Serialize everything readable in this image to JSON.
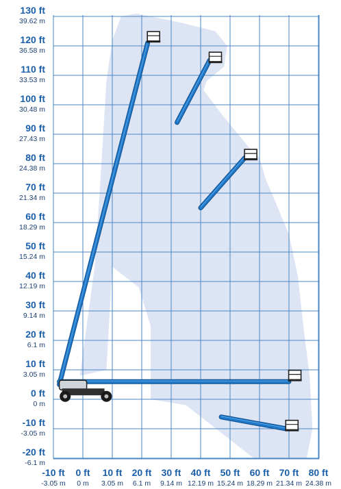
{
  "colors": {
    "grid": "#4a86c6",
    "envelope": "#dde4f3",
    "boom": "#1f78c8",
    "boom_dark": "#0f4e8c",
    "label_ft": "#1a5fa8",
    "label_m": "#1c3f72"
  },
  "y_axis": [
    {
      "ft": "130 ft",
      "m": "39.62 m",
      "v": 130
    },
    {
      "ft": "120 ft",
      "m": "36.58 m",
      "v": 120
    },
    {
      "ft": "110 ft",
      "m": "33.53 m",
      "v": 110
    },
    {
      "ft": "100 ft",
      "m": "30.48 m",
      "v": 100
    },
    {
      "ft": "90 ft",
      "m": "27.43 m",
      "v": 90
    },
    {
      "ft": "80 ft",
      "m": "24.38 m",
      "v": 80
    },
    {
      "ft": "70 ft",
      "m": "21.34 m",
      "v": 70
    },
    {
      "ft": "60 ft",
      "m": "18.29 m",
      "v": 60
    },
    {
      "ft": "50 ft",
      "m": "15.24 m",
      "v": 50
    },
    {
      "ft": "40 ft",
      "m": "12.19 m",
      "v": 40
    },
    {
      "ft": "30 ft",
      "m": "9.14 m",
      "v": 30
    },
    {
      "ft": "20 ft",
      "m": "6.1 m",
      "v": 20
    },
    {
      "ft": "10 ft",
      "m": "3.05 m",
      "v": 10
    },
    {
      "ft": "0 ft",
      "m": "0 m",
      "v": 0
    },
    {
      "ft": "-10 ft",
      "m": "-3.05 m",
      "v": -10
    },
    {
      "ft": "-20 ft",
      "m": "-6.1 m",
      "v": -20
    }
  ],
  "x_axis": [
    {
      "ft": "-10 ft",
      "m": "-3.05 m",
      "v": -10
    },
    {
      "ft": "0 ft",
      "m": "0 m",
      "v": 0
    },
    {
      "ft": "10 ft",
      "m": "3.05 m",
      "v": 10
    },
    {
      "ft": "20 ft",
      "m": "6.1 m",
      "v": 20
    },
    {
      "ft": "30 ft",
      "m": "9.14 m",
      "v": 30
    },
    {
      "ft": "40 ft",
      "m": "12.19 m",
      "v": 40
    },
    {
      "ft": "50 ft",
      "m": "15.24 m",
      "v": 50
    },
    {
      "ft": "60 ft",
      "m": "18.29 m",
      "v": 60
    },
    {
      "ft": "70 ft",
      "m": "21.34 m",
      "v": 70
    },
    {
      "ft": "80 ft",
      "m": "24.38 m",
      "v": 80
    }
  ],
  "envelope_outline": [
    [
      -1,
      8
    ],
    [
      4,
      45
    ],
    [
      6,
      75
    ],
    [
      8,
      108
    ],
    [
      10,
      122
    ],
    [
      13,
      130
    ],
    [
      18,
      131
    ],
    [
      23,
      130
    ],
    [
      33,
      128
    ],
    [
      45,
      125
    ],
    [
      49,
      120
    ],
    [
      48,
      113
    ],
    [
      42,
      108
    ],
    [
      41,
      105
    ],
    [
      47,
      97
    ],
    [
      56,
      86
    ],
    [
      60,
      82
    ],
    [
      62,
      75
    ],
    [
      65,
      68
    ],
    [
      70,
      56
    ],
    [
      73,
      42
    ],
    [
      75,
      24
    ],
    [
      77,
      8
    ],
    [
      78,
      -10
    ],
    [
      76,
      -20
    ],
    [
      58,
      -20
    ],
    [
      35,
      -2
    ],
    [
      23,
      0
    ],
    [
      23,
      25
    ],
    [
      19,
      38
    ],
    [
      10,
      45
    ],
    [
      8,
      10
    ]
  ],
  "booms": [
    {
      "name": "max-height",
      "base": [
        -8,
        5
      ],
      "tip": [
        22,
        121
      ],
      "platform": [
        24,
        123
      ]
    },
    {
      "name": "upper-rotated",
      "base": [
        32,
        94
      ],
      "tip": [
        43,
        115
      ],
      "platform": [
        45,
        116
      ]
    },
    {
      "name": "mid-rotated",
      "base": [
        40,
        65
      ],
      "tip": [
        55,
        82
      ],
      "platform": [
        57,
        83
      ]
    },
    {
      "name": "horizontal-reach",
      "base": [
        -8,
        6
      ],
      "tip": [
        70,
        6
      ],
      "platform": [
        72,
        8
      ]
    },
    {
      "name": "below-grade",
      "base": [
        47,
        -6
      ],
      "tip": [
        69,
        -10
      ],
      "platform": [
        71,
        -9
      ]
    }
  ]
}
